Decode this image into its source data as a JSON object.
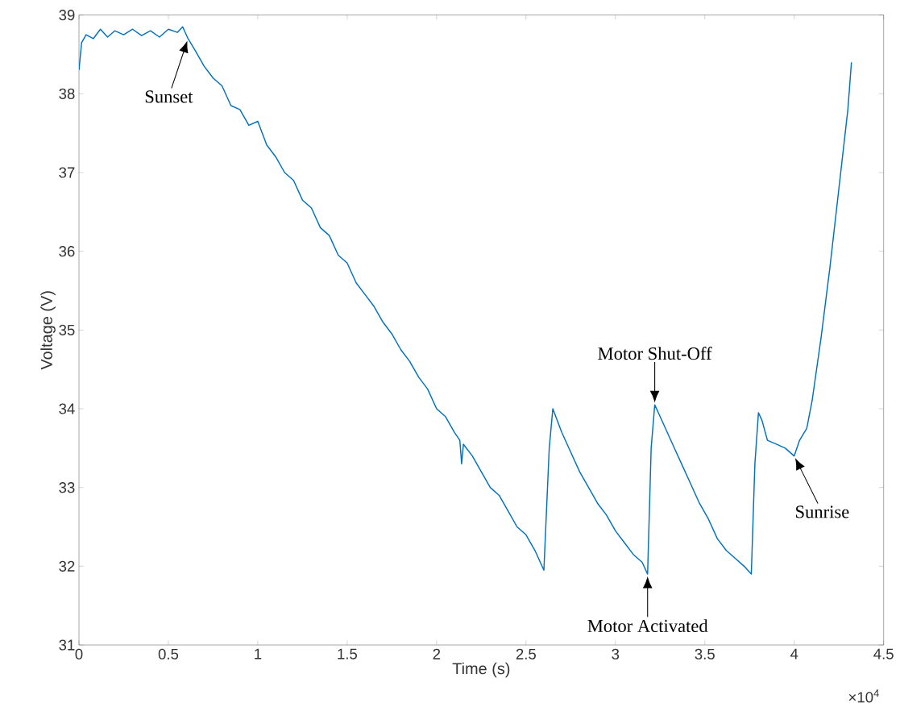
{
  "chart_data": {
    "type": "line",
    "xlabel": "Time (s)",
    "ylabel": "Voltage (V)",
    "xlim": [
      0,
      4.5
    ],
    "ylim": [
      31,
      39
    ],
    "xticks": [
      0,
      0.5,
      1,
      1.5,
      2,
      2.5,
      3,
      3.5,
      4,
      4.5
    ],
    "yticks": [
      31,
      32,
      33,
      34,
      35,
      36,
      37,
      38,
      39
    ],
    "grid": false,
    "x": [
      0,
      0.015,
      0.04,
      0.08,
      0.12,
      0.16,
      0.2,
      0.25,
      0.3,
      0.35,
      0.4,
      0.45,
      0.5,
      0.55,
      0.58,
      0.61,
      0.65,
      0.7,
      0.75,
      0.8,
      0.85,
      0.9,
      0.95,
      1.0,
      1.05,
      1.1,
      1.15,
      1.2,
      1.25,
      1.3,
      1.35,
      1.4,
      1.45,
      1.5,
      1.55,
      1.6,
      1.65,
      1.7,
      1.75,
      1.8,
      1.85,
      1.9,
      1.95,
      2.0,
      2.05,
      2.1,
      2.13,
      2.14,
      2.15,
      2.2,
      2.25,
      2.3,
      2.35,
      2.4,
      2.45,
      2.5,
      2.55,
      2.6,
      2.63,
      2.65,
      2.7,
      2.75,
      2.8,
      2.85,
      2.9,
      2.95,
      3.0,
      3.05,
      3.1,
      3.15,
      3.18,
      3.2,
      3.22,
      3.27,
      3.32,
      3.37,
      3.42,
      3.47,
      3.52,
      3.57,
      3.62,
      3.67,
      3.72,
      3.76,
      3.78,
      3.8,
      3.82,
      3.85,
      3.9,
      3.95,
      4.0,
      4.03,
      4.07,
      4.1,
      4.15,
      4.2,
      4.25,
      4.3,
      4.32
    ],
    "series": [
      {
        "color": "#0072bd",
        "values": [
          38.3,
          38.65,
          38.75,
          38.7,
          38.82,
          38.72,
          38.8,
          38.75,
          38.82,
          38.74,
          38.8,
          38.72,
          38.82,
          38.78,
          38.85,
          38.7,
          38.55,
          38.35,
          38.2,
          38.1,
          37.85,
          37.8,
          37.6,
          37.65,
          37.35,
          37.2,
          37.0,
          36.9,
          36.65,
          36.55,
          36.3,
          36.2,
          35.95,
          35.85,
          35.6,
          35.45,
          35.3,
          35.1,
          34.95,
          34.75,
          34.6,
          34.4,
          34.25,
          34.0,
          33.9,
          33.7,
          33.6,
          33.3,
          33.55,
          33.4,
          33.2,
          33.0,
          32.9,
          32.7,
          32.5,
          32.4,
          32.2,
          31.95,
          33.5,
          34.0,
          33.7,
          33.45,
          33.2,
          33.0,
          32.8,
          32.65,
          32.45,
          32.3,
          32.15,
          32.05,
          31.9,
          33.5,
          34.05,
          33.8,
          33.55,
          33.3,
          33.05,
          32.8,
          32.6,
          32.35,
          32.2,
          32.1,
          32.0,
          31.9,
          33.3,
          33.95,
          33.85,
          33.6,
          33.55,
          33.5,
          33.4,
          33.6,
          33.75,
          34.1,
          34.9,
          35.8,
          36.8,
          37.8,
          38.4
        ]
      }
    ],
    "annotations": [
      {
        "text": "Sunset",
        "x": 0.61,
        "y": 38.7
      },
      {
        "text": "Motor Shut-Off",
        "x": 3.22,
        "y": 34.05
      },
      {
        "text": "Motor Activated",
        "x": 3.18,
        "y": 31.9
      },
      {
        "text": "Sunrise",
        "x": 4.0,
        "y": 33.4
      },
      "×10$^{4}$"
    ]
  }
}
